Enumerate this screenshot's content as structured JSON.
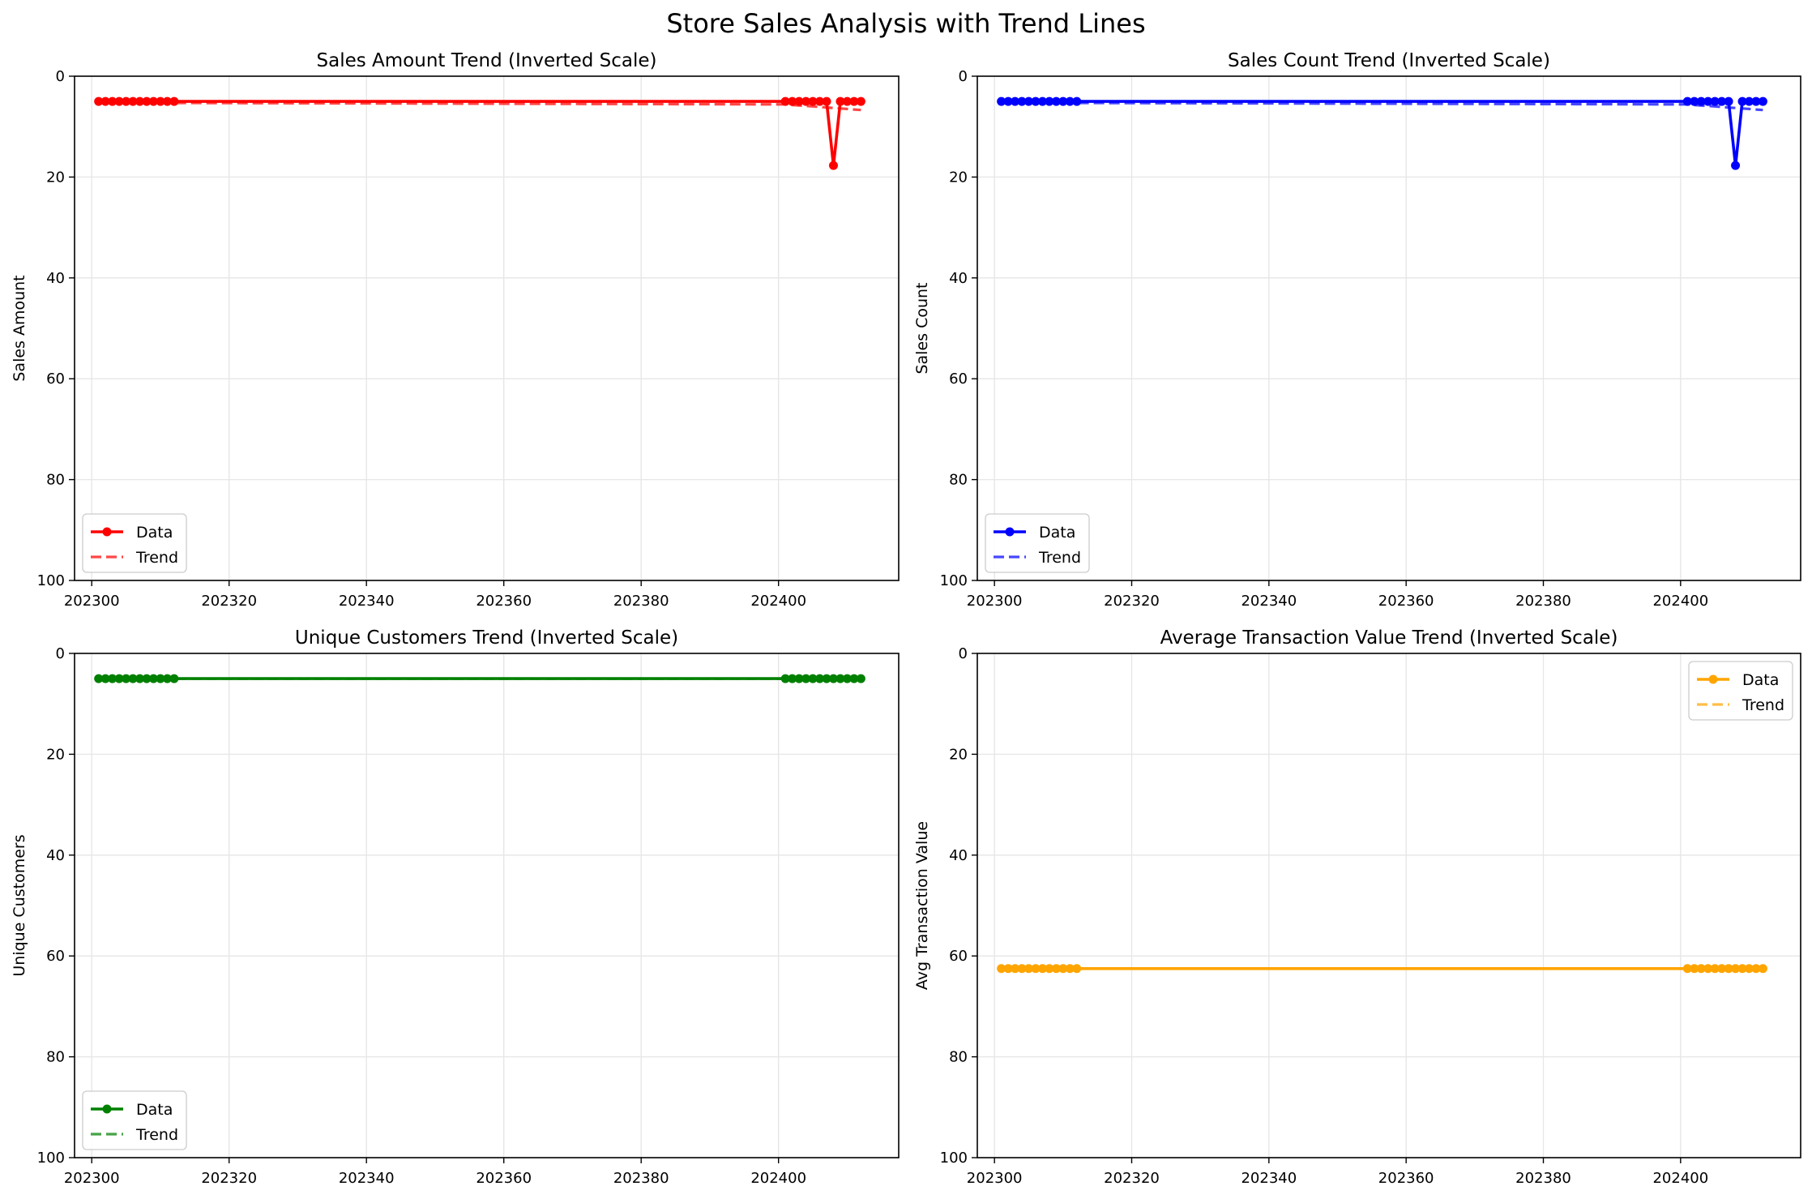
{
  "figure_title": "Store Sales Analysis with Trend Lines",
  "chart_data": [
    {
      "type": "line",
      "title": "Sales Amount Trend (Inverted Scale)",
      "xlabel": "",
      "ylabel": "Sales Amount",
      "y_inverted": true,
      "ylim": [
        0,
        100
      ],
      "xlim": [
        202297.5,
        202417.5
      ],
      "xticks": [
        202300,
        202320,
        202340,
        202360,
        202380,
        202400
      ],
      "yticks": [
        0,
        20,
        40,
        60,
        80,
        100
      ],
      "grid": true,
      "legend_position": "lower-left",
      "color": "#ff0000",
      "x": [
        202301,
        202302,
        202303,
        202304,
        202305,
        202306,
        202307,
        202308,
        202309,
        202310,
        202311,
        202312,
        202401,
        202402,
        202403,
        202404,
        202405,
        202406,
        202407,
        202408,
        202409,
        202410,
        202411,
        202412
      ],
      "series": [
        {
          "name": "Data",
          "style": "solid-markers",
          "values": [
            5,
            5,
            5,
            5,
            5,
            5,
            5,
            5,
            5,
            5,
            5,
            5,
            5,
            5,
            5,
            5,
            5,
            5,
            5,
            17.7,
            5,
            5,
            5,
            5
          ]
        },
        {
          "name": "Trend",
          "style": "dashed",
          "values": [
            5.3,
            5.3,
            5.3,
            5.3,
            5.3,
            5.3,
            5.3,
            5.3,
            5.3,
            5.3,
            5.3,
            5.3,
            5.6,
            5.7,
            5.8,
            5.9,
            6.0,
            6.1,
            6.2,
            6.3,
            6.4,
            6.5,
            6.6,
            6.7
          ]
        }
      ]
    },
    {
      "type": "line",
      "title": "Sales Count Trend (Inverted Scale)",
      "xlabel": "",
      "ylabel": "Sales Count",
      "y_inverted": true,
      "ylim": [
        0,
        100
      ],
      "xlim": [
        202297.5,
        202417.5
      ],
      "xticks": [
        202300,
        202320,
        202340,
        202360,
        202380,
        202400
      ],
      "yticks": [
        0,
        20,
        40,
        60,
        80,
        100
      ],
      "grid": true,
      "legend_position": "lower-left",
      "color": "#0000ff",
      "x": [
        202301,
        202302,
        202303,
        202304,
        202305,
        202306,
        202307,
        202308,
        202309,
        202310,
        202311,
        202312,
        202401,
        202402,
        202403,
        202404,
        202405,
        202406,
        202407,
        202408,
        202409,
        202410,
        202411,
        202412
      ],
      "series": [
        {
          "name": "Data",
          "style": "solid-markers",
          "values": [
            5,
            5,
            5,
            5,
            5,
            5,
            5,
            5,
            5,
            5,
            5,
            5,
            5,
            5,
            5,
            5,
            5,
            5,
            5,
            17.7,
            5,
            5,
            5,
            5
          ]
        },
        {
          "name": "Trend",
          "style": "dashed",
          "values": [
            5.3,
            5.3,
            5.3,
            5.3,
            5.3,
            5.3,
            5.3,
            5.3,
            5.3,
            5.3,
            5.3,
            5.3,
            5.6,
            5.7,
            5.8,
            5.9,
            6.0,
            6.1,
            6.2,
            6.3,
            6.4,
            6.5,
            6.6,
            6.7
          ]
        }
      ]
    },
    {
      "type": "line",
      "title": "Unique Customers Trend (Inverted Scale)",
      "xlabel": "",
      "ylabel": "Unique Customers",
      "y_inverted": true,
      "ylim": [
        0,
        100
      ],
      "xlim": [
        202297.5,
        202417.5
      ],
      "xticks": [
        202300,
        202320,
        202340,
        202360,
        202380,
        202400
      ],
      "yticks": [
        0,
        20,
        40,
        60,
        80,
        100
      ],
      "grid": true,
      "legend_position": "lower-left",
      "color": "#008000",
      "x": [
        202301,
        202302,
        202303,
        202304,
        202305,
        202306,
        202307,
        202308,
        202309,
        202310,
        202311,
        202312,
        202401,
        202402,
        202403,
        202404,
        202405,
        202406,
        202407,
        202408,
        202409,
        202410,
        202411,
        202412
      ],
      "series": [
        {
          "name": "Data",
          "style": "solid-markers",
          "values": [
            5,
            5,
            5,
            5,
            5,
            5,
            5,
            5,
            5,
            5,
            5,
            5,
            5,
            5,
            5,
            5,
            5,
            5,
            5,
            5,
            5,
            5,
            5,
            5
          ]
        },
        {
          "name": "Trend",
          "style": "dashed",
          "values": [
            5,
            5,
            5,
            5,
            5,
            5,
            5,
            5,
            5,
            5,
            5,
            5,
            5,
            5,
            5,
            5,
            5,
            5,
            5,
            5,
            5,
            5,
            5,
            5
          ]
        }
      ]
    },
    {
      "type": "line",
      "title": "Average Transaction Value Trend (Inverted Scale)",
      "xlabel": "",
      "ylabel": "Avg Transaction Value",
      "y_inverted": true,
      "ylim": [
        0,
        100
      ],
      "xlim": [
        202297.5,
        202417.5
      ],
      "xticks": [
        202300,
        202320,
        202340,
        202360,
        202380,
        202400
      ],
      "yticks": [
        0,
        20,
        40,
        60,
        80,
        100
      ],
      "grid": true,
      "legend_position": "upper-right",
      "color": "#ffa500",
      "x": [
        202301,
        202302,
        202303,
        202304,
        202305,
        202306,
        202307,
        202308,
        202309,
        202310,
        202311,
        202312,
        202401,
        202402,
        202403,
        202404,
        202405,
        202406,
        202407,
        202408,
        202409,
        202410,
        202411,
        202412
      ],
      "series": [
        {
          "name": "Data",
          "style": "solid-markers",
          "values": [
            62.5,
            62.5,
            62.5,
            62.5,
            62.5,
            62.5,
            62.5,
            62.5,
            62.5,
            62.5,
            62.5,
            62.5,
            62.5,
            62.5,
            62.5,
            62.5,
            62.5,
            62.5,
            62.5,
            62.5,
            62.5,
            62.5,
            62.5,
            62.5
          ]
        },
        {
          "name": "Trend",
          "style": "dashed",
          "values": [
            62.5,
            62.5,
            62.5,
            62.5,
            62.5,
            62.5,
            62.5,
            62.5,
            62.5,
            62.5,
            62.5,
            62.5,
            62.5,
            62.5,
            62.5,
            62.5,
            62.5,
            62.5,
            62.5,
            62.5,
            62.5,
            62.5,
            62.5,
            62.5
          ]
        }
      ]
    }
  ]
}
